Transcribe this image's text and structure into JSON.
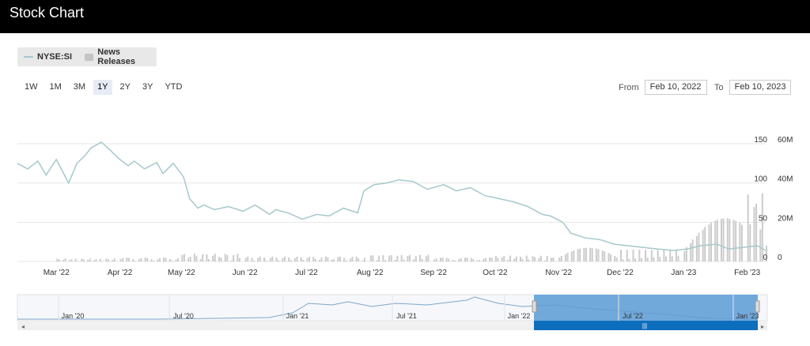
{
  "header": {
    "title": "Stock Chart"
  },
  "legend": {
    "series_label": "NYSE:SI",
    "news_label": "News Releases"
  },
  "range_buttons": [
    {
      "label": "1W",
      "active": false
    },
    {
      "label": "1M",
      "active": false
    },
    {
      "label": "3M",
      "active": false
    },
    {
      "label": "1Y",
      "active": true
    },
    {
      "label": "2Y",
      "active": false
    },
    {
      "label": "3Y",
      "active": false
    },
    {
      "label": "YTD",
      "active": false
    }
  ],
  "date_range": {
    "from_label": "From",
    "from_value": "Feb 10, 2022",
    "to_label": "To",
    "to_value": "Feb 10, 2023"
  },
  "colors": {
    "price_line": "#a6c8cc",
    "volume_bar": "#cccccc",
    "navigator_fill": "#5b9bd5",
    "navigator_bar": "#0d6ebd"
  },
  "chart_data": {
    "type": "line",
    "title": "",
    "x_labels": [
      "Mar '22",
      "Apr '22",
      "May '22",
      "Jun '22",
      "Jul '22",
      "Aug '22",
      "Sep '22",
      "Oct '22",
      "Nov '22",
      "Dec '22",
      "Jan '23",
      "Feb '23"
    ],
    "price_axis": {
      "ticks": [
        "0",
        "50",
        "100",
        "150"
      ],
      "ylim": [
        0,
        150
      ]
    },
    "volume_axis": {
      "ticks": [
        "0",
        "20M",
        "40M",
        "60M"
      ],
      "ylim": [
        0,
        60000000
      ]
    },
    "grid": true,
    "legend_position": "top-left",
    "series": [
      {
        "name": "NYSE:SI",
        "type": "line",
        "x": [
          "2022-02-10",
          "2022-02-15",
          "2022-02-20",
          "2022-02-24",
          "2022-03-01",
          "2022-03-07",
          "2022-03-11",
          "2022-03-15",
          "2022-03-18",
          "2022-03-23",
          "2022-03-28",
          "2022-04-01",
          "2022-04-05",
          "2022-04-08",
          "2022-04-13",
          "2022-04-19",
          "2022-04-22",
          "2022-04-27",
          "2022-05-02",
          "2022-05-05",
          "2022-05-09",
          "2022-05-12",
          "2022-05-17",
          "2022-05-24",
          "2022-05-31",
          "2022-06-06",
          "2022-06-13",
          "2022-06-16",
          "2022-06-22",
          "2022-06-29",
          "2022-07-06",
          "2022-07-12",
          "2022-07-19",
          "2022-07-26",
          "2022-07-29",
          "2022-08-03",
          "2022-08-09",
          "2022-08-15",
          "2022-08-22",
          "2022-08-29",
          "2022-09-06",
          "2022-09-12",
          "2022-09-19",
          "2022-09-26",
          "2022-10-03",
          "2022-10-10",
          "2022-10-17",
          "2022-10-24",
          "2022-10-28",
          "2022-11-03",
          "2022-11-07",
          "2022-11-14",
          "2022-11-21",
          "2022-11-28",
          "2022-12-05",
          "2022-12-12",
          "2022-12-19",
          "2022-12-27",
          "2023-01-03",
          "2023-01-09",
          "2023-01-17",
          "2023-01-23",
          "2023-01-30",
          "2023-02-06",
          "2023-02-10"
        ],
        "y": [
          125,
          118,
          128,
          110,
          130,
          100,
          125,
          135,
          145,
          152,
          140,
          130,
          122,
          128,
          118,
          126,
          112,
          125,
          108,
          80,
          68,
          72,
          66,
          70,
          64,
          72,
          60,
          66,
          62,
          54,
          60,
          58,
          68,
          62,
          90,
          98,
          100,
          104,
          102,
          92,
          98,
          90,
          94,
          84,
          80,
          76,
          70,
          60,
          58,
          50,
          36,
          30,
          28,
          22,
          20,
          18,
          16,
          14,
          16,
          20,
          22,
          16,
          18,
          20,
          14
        ]
      },
      {
        "name": "Volume",
        "type": "bar",
        "x": [
          "2022-03",
          "2022-04",
          "2022-05",
          "2022-06",
          "2022-07",
          "2022-08",
          "2022-09",
          "2022-10",
          "2022-11",
          "2022-12",
          "2023-01",
          "2023-02"
        ],
        "values": [
          1500000,
          2000000,
          4000000,
          2500000,
          2500000,
          3500000,
          2000000,
          3000000,
          7000000,
          6000000,
          22000000,
          35000000
        ]
      }
    ],
    "navigator": {
      "x_labels": [
        "Jan '20",
        "Jul '20",
        "Jan '21",
        "Jul '21",
        "Jan '22",
        "Jul '22",
        "Jan '23"
      ]
    }
  }
}
